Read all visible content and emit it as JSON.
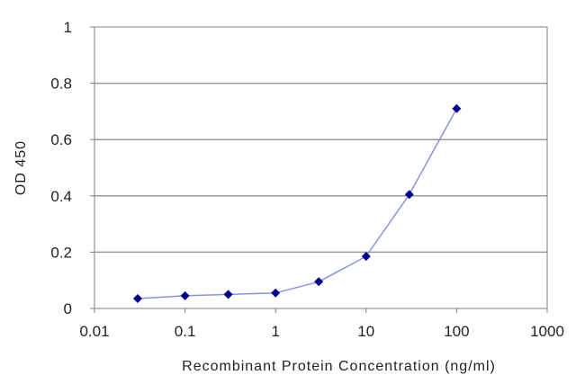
{
  "chart_data": {
    "type": "line",
    "title": "",
    "xlabel": "Recombinant Protein Concentration (ng/ml)",
    "ylabel": "OD 450",
    "x_scale": "log",
    "xlim": [
      0.01,
      1000
    ],
    "ylim": [
      0,
      1
    ],
    "x_tick_labels": [
      "0.01",
      "0.1",
      "1",
      "10",
      "100",
      "1000"
    ],
    "x_tick_values": [
      0.01,
      0.1,
      1,
      10,
      100,
      1000
    ],
    "y_tick_labels": [
      "0",
      "0.2",
      "0.4",
      "0.6",
      "0.8",
      "1"
    ],
    "y_tick_values": [
      0,
      0.2,
      0.4,
      0.6,
      0.8,
      1
    ],
    "grid": "horizontal",
    "legend": "none",
    "series": [
      {
        "x": [
          0.03,
          0.1,
          0.3,
          1,
          3,
          10,
          30,
          100
        ],
        "y": [
          0.035,
          0.045,
          0.05,
          0.055,
          0.095,
          0.185,
          0.405,
          0.71
        ]
      }
    ],
    "colors": {
      "line": "#8a93e0",
      "marker": "#00008b",
      "grid": "#9a9a9a",
      "axis": "#7f7f7f"
    }
  }
}
